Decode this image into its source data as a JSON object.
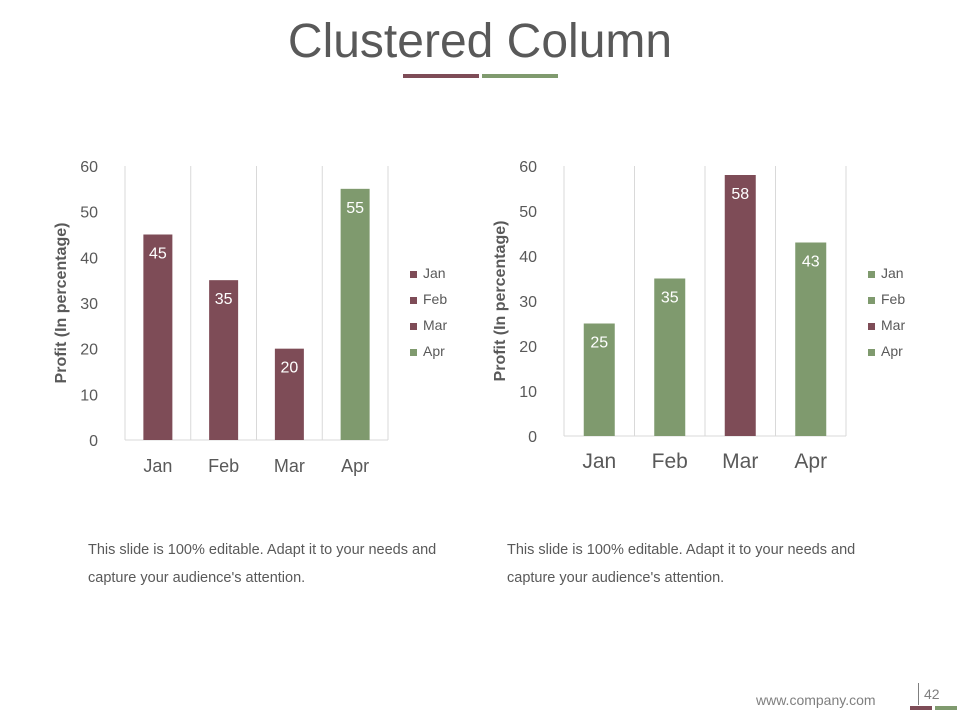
{
  "slide": {
    "title": "Clustered Column",
    "footer_url": "www.company.com",
    "page_number": "42"
  },
  "colors": {
    "maroon": "#7E4C57",
    "green": "#7F9A6E",
    "text": "#595959",
    "grid": "#D9D9D9"
  },
  "captions": {
    "left": "This slide is 100% editable. Adapt it to your needs and capture your audience's attention.",
    "right": "This slide is 100% editable. Adapt it to your needs and capture your audience's attention."
  },
  "chart_data": [
    {
      "type": "bar",
      "categories": [
        "Jan",
        "Feb",
        "Mar",
        "Apr"
      ],
      "values": [
        45,
        35,
        20,
        55
      ],
      "bar_colors": [
        "#7E4C57",
        "#7E4C57",
        "#7E4C57",
        "#7F9A6E"
      ],
      "ylabel": "Profit  (In percentage)",
      "ylim": [
        0,
        60
      ],
      "yticks": [
        0,
        10,
        20,
        30,
        40,
        50,
        60
      ],
      "grid": "vertical",
      "legend_position": "right",
      "legend": [
        {
          "label": "Jan",
          "color": "#7E4C57"
        },
        {
          "label": "Feb",
          "color": "#7E4C57"
        },
        {
          "label": "Mar",
          "color": "#7E4C57"
        },
        {
          "label": "Apr",
          "color": "#7F9A6E"
        }
      ]
    },
    {
      "type": "bar",
      "categories": [
        "Jan",
        "Feb",
        "Mar",
        "Apr"
      ],
      "values": [
        25,
        35,
        58,
        43
      ],
      "bar_colors": [
        "#7F9A6E",
        "#7F9A6E",
        "#7E4C57",
        "#7F9A6E"
      ],
      "ylabel": "Profit  (In percentage)",
      "ylim": [
        0,
        60
      ],
      "yticks": [
        0,
        10,
        20,
        30,
        40,
        50,
        60
      ],
      "grid": "vertical",
      "legend_position": "right",
      "legend": [
        {
          "label": "Jan",
          "color": "#7F9A6E"
        },
        {
          "label": "Feb",
          "color": "#7F9A6E"
        },
        {
          "label": "Mar",
          "color": "#7E4C57"
        },
        {
          "label": "Apr",
          "color": "#7F9A6E"
        }
      ]
    }
  ]
}
